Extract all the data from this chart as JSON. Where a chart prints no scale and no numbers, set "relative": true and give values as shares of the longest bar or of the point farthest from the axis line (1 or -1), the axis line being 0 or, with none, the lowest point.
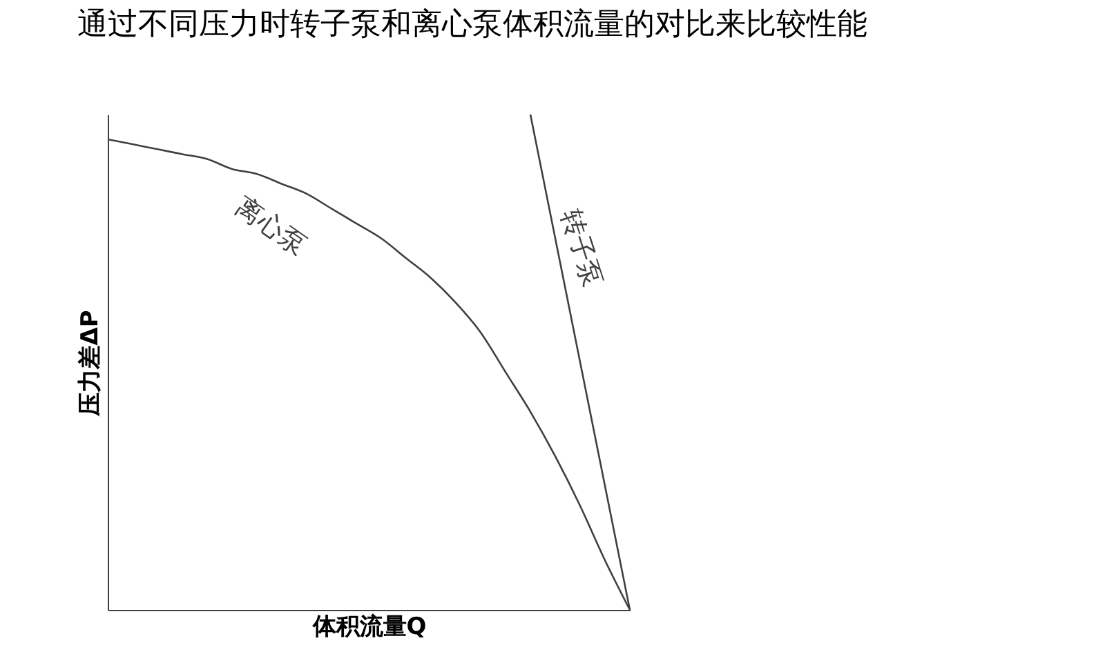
{
  "chart_data": {
    "type": "line",
    "title": "通过不同压力时转子泵和离心泵体积流量的对比来比较性能",
    "xlabel": "体积流量Q",
    "ylabel": "压力差ΔP",
    "relative": true,
    "tick_labels": false,
    "grid": false,
    "marker": "none",
    "line_style": "solid",
    "categories": [
      null,
      null,
      null,
      null,
      null,
      null,
      null,
      null,
      null,
      null,
      null,
      null,
      null,
      null,
      null,
      null,
      null,
      null,
      null,
      null,
      null,
      null
    ],
    "series": [
      {
        "name": "离心泵",
        "color": "#404040",
        "values": [
          0.95,
          0.94,
          0.93,
          0.92,
          0.91,
          0.89,
          0.88,
          0.86,
          0.84,
          0.81,
          0.78,
          0.75,
          0.71,
          0.67,
          0.62,
          0.56,
          0.48,
          0.4,
          0.31,
          0.21,
          0.1,
          0
        ]
      },
      {
        "name": "转子泵",
        "color": "#404040",
        "values": [
          null,
          null,
          null,
          null,
          null,
          null,
          null,
          null,
          null,
          null,
          null,
          null,
          null,
          null,
          null,
          null,
          null,
          1,
          null,
          null,
          null,
          0
        ]
      }
    ]
  }
}
